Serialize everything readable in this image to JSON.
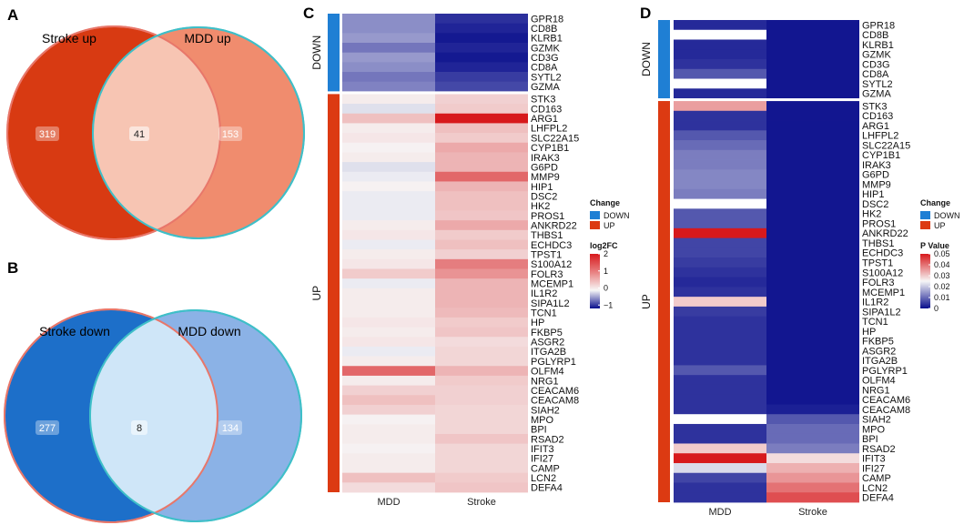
{
  "panels": {
    "a": "A",
    "b": "B",
    "c": "C",
    "d": "D"
  },
  "venn_up": {
    "left_label": "Stroke up",
    "right_label": "MDD up",
    "left_only": "319",
    "overlap": "41",
    "right_only": "153",
    "left_color": "#d83a12",
    "right_color": "#f08c6e",
    "overlap_color": "#f7c5b3"
  },
  "venn_down": {
    "left_label": "Stroke down",
    "right_label": "MDD down",
    "left_only": "277",
    "overlap": "8",
    "right_only": "134",
    "left_color": "#1d6fc9",
    "right_color": "#8bb2e6",
    "overlap_color": "#cfe6f8"
  },
  "genes_down": [
    "GPR18",
    "CD8B",
    "KLRB1",
    "GZMK",
    "CD3G",
    "CD8A",
    "SYTL2",
    "GZMA"
  ],
  "genes_up": [
    "STK3",
    "CD163",
    "ARG1",
    "LHFPL2",
    "SLC22A15",
    "CYP1B1",
    "IRAK3",
    "G6PD",
    "MMP9",
    "HIP1",
    "DSC2",
    "HK2",
    "PROS1",
    "ANKRD22",
    "THBS1",
    "ECHDC3",
    "TPST1",
    "S100A12",
    "FOLR3",
    "MCEMP1",
    "IL1R2",
    "SIPA1L2",
    "TCN1",
    "HP",
    "FKBP5",
    "ASGR2",
    "ITGA2B",
    "PGLYRP1",
    "OLFM4",
    "NRG1",
    "CEACAM6",
    "CEACAM8",
    "SIAH2",
    "MPO",
    "BPI",
    "RSAD2",
    "IFIT3",
    "IFI27",
    "CAMP",
    "LCN2",
    "DEFA4"
  ],
  "heatmap_c": {
    "columns": [
      "MDD",
      "Stroke"
    ],
    "group_down": "DOWN",
    "group_up": "UP",
    "mdd_down": [
      -0.45,
      -0.45,
      -0.4,
      -0.55,
      -0.4,
      -0.45,
      -0.55,
      -0.5
    ],
    "stroke_down": [
      -0.85,
      -0.9,
      -0.95,
      -0.9,
      -0.95,
      -0.9,
      -0.8,
      -0.75
    ],
    "mdd_up": [
      0.1,
      -0.1,
      0.5,
      0.1,
      0.15,
      0.05,
      0.1,
      -0.1,
      -0.05,
      0.05,
      -0.05,
      -0.05,
      -0.05,
      0.1,
      0.15,
      -0.05,
      0.1,
      0.15,
      0.4,
      -0.05,
      0.1,
      0.1,
      0.1,
      0.15,
      0.1,
      0.15,
      -0.05,
      0.1,
      1.3,
      0.1,
      0.35,
      0.5,
      0.35,
      0.05,
      0.1,
      0.1,
      0.05,
      0.1,
      0.1,
      0.5,
      0.25
    ],
    "stroke_up": [
      0.35,
      0.4,
      2.0,
      0.5,
      0.4,
      0.7,
      0.6,
      0.6,
      1.3,
      0.6,
      0.5,
      0.5,
      0.45,
      0.7,
      0.4,
      0.5,
      0.35,
      1.1,
      0.9,
      0.6,
      0.6,
      0.6,
      0.55,
      0.4,
      0.45,
      0.25,
      0.3,
      0.3,
      0.6,
      0.4,
      0.35,
      0.35,
      0.3,
      0.3,
      0.3,
      0.45,
      0.3,
      0.3,
      0.3,
      0.4,
      0.45
    ]
  },
  "heatmap_d": {
    "columns": [
      "MDD",
      "Stroke"
    ],
    "group_down": "DOWN",
    "group_up": "UP",
    "mdd_down": [
      0.003,
      "NA",
      0.003,
      0.003,
      0.004,
      0.008,
      "NA",
      0.003
    ],
    "stroke_down": [
      0.001,
      0.001,
      0.001,
      0.001,
      0.001,
      0.001,
      0.001,
      0.001
    ],
    "mdd_up": [
      0.035,
      0.004,
      0.004,
      0.008,
      0.01,
      0.012,
      0.012,
      0.013,
      0.013,
      0.012,
      "NA",
      0.008,
      0.008,
      0.05,
      0.006,
      0.006,
      0.005,
      0.004,
      0.003,
      0.004,
      0.03,
      0.005,
      0.004,
      0.004,
      0.004,
      0.004,
      0.004,
      0.008,
      0.004,
      0.004,
      0.004,
      0.004,
      "NA",
      0.004,
      0.004,
      0.03,
      0.05,
      0.022,
      0.006,
      0.004,
      0.004
    ],
    "stroke_up": [
      0.001,
      0.001,
      0.001,
      0.001,
      0.001,
      0.001,
      0.001,
      0.001,
      0.001,
      0.001,
      0.001,
      0.001,
      0.001,
      0.001,
      0.001,
      0.001,
      0.001,
      0.001,
      0.001,
      0.001,
      0.001,
      0.001,
      0.001,
      0.001,
      0.001,
      0.001,
      0.001,
      0.001,
      0.001,
      0.001,
      0.001,
      0.002,
      0.008,
      0.01,
      0.01,
      0.012,
      0.028,
      0.033,
      0.036,
      0.04,
      0.044
    ]
  },
  "legend_c": {
    "change_title": "Change",
    "down": "DOWN",
    "up": "UP",
    "scale_title": "log2FC",
    "ticks": [
      "2",
      "1",
      "0",
      "−1"
    ],
    "tick_values": [
      2,
      1,
      0,
      -1
    ]
  },
  "legend_d": {
    "change_title": "Change",
    "down": "DOWN",
    "up": "UP",
    "scale_title": "P Value",
    "ticks": [
      "0.05",
      "0.04",
      "0.03",
      "0.02",
      "0.01",
      "0"
    ],
    "tick_values": [
      0.05,
      0.04,
      0.03,
      0.02,
      0.01,
      0
    ]
  },
  "colors": {
    "down_bar": "#1f7fd4",
    "up_bar": "#dc3a12",
    "red": "#d7191c",
    "white": "#f7f7f7",
    "blue": "#080d8c",
    "outline": "#3fbfc8"
  }
}
